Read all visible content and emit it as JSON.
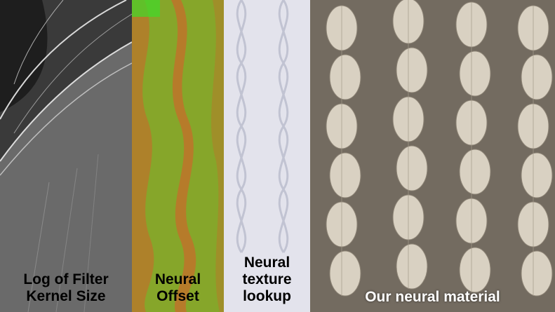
{
  "panels": [
    {
      "caption_lines": [
        "Log of Filter",
        "Kernel Size"
      ]
    },
    {
      "caption_lines": [
        "Neural",
        "Offset"
      ]
    },
    {
      "caption_lines": [
        "Neural",
        "texture",
        "lookup"
      ]
    },
    {
      "caption_lines": [
        "Our neural material"
      ]
    }
  ]
}
